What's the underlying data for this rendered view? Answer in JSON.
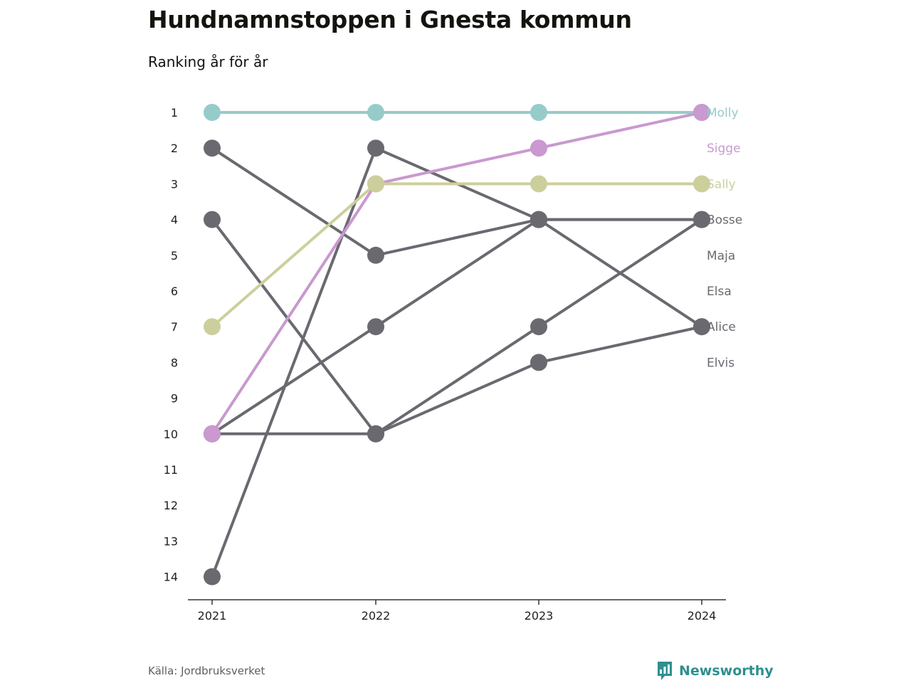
{
  "title": "Hundnamnstoppen i Gnesta kommun",
  "subtitle": "Ranking år för år",
  "source": "Källa: Jordbruksverket",
  "brand": {
    "name": "Newsworthy",
    "icon": "bar-chart-icon",
    "color": "#2f8f8f"
  },
  "chart_data": {
    "type": "line",
    "x": [
      "2021",
      "2022",
      "2023",
      "2024"
    ],
    "y_ticks": [
      "1",
      "2",
      "3",
      "4",
      "5",
      "6",
      "7",
      "8",
      "9",
      "10",
      "11",
      "12",
      "13",
      "14"
    ],
    "ylim": [
      1,
      14
    ],
    "y_reversed": true,
    "grid": false,
    "legend": "end-labels-right",
    "series": [
      {
        "name": "Molly",
        "color": "#96cbc9",
        "values": [
          1,
          1,
          1,
          1
        ]
      },
      {
        "name": "Sigge",
        "color": "#c999cf",
        "values": [
          10,
          3,
          2,
          1
        ]
      },
      {
        "name": "Sally",
        "color": "#cccf9c",
        "values": [
          7,
          3,
          3,
          3
        ]
      },
      {
        "name": "Bosse",
        "color": "#6a6970",
        "values": [
          2,
          5,
          4,
          4
        ]
      },
      {
        "name": "Maja",
        "color": "#6a6970",
        "values": [
          10,
          7,
          4,
          4
        ]
      },
      {
        "name": "Elsa",
        "color": "#6a6970",
        "values": [
          14,
          2,
          4,
          7
        ]
      },
      {
        "name": "Alice",
        "color": "#6a6970",
        "values": [
          4,
          10,
          7,
          4
        ]
      },
      {
        "name": "Elvis",
        "color": "#6a6970",
        "values": [
          10,
          10,
          8,
          7
        ]
      }
    ]
  }
}
